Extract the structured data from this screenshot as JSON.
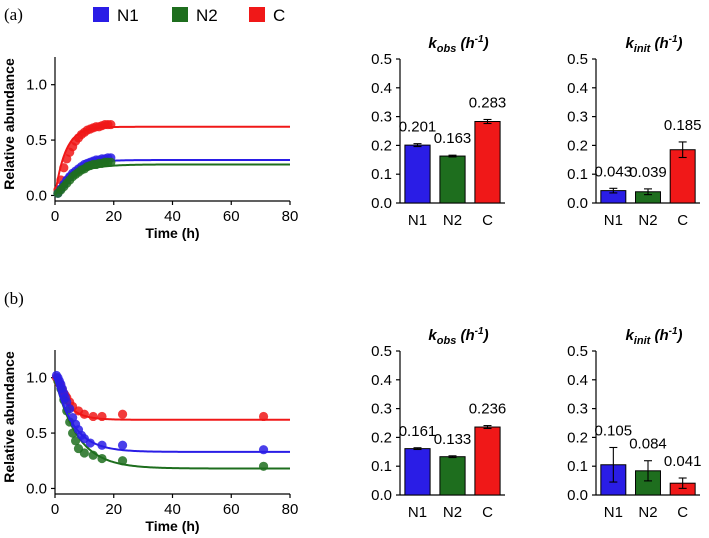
{
  "legend": [
    {
      "name": "N1",
      "color": "#2a1de6"
    },
    {
      "name": "N2",
      "color": "#1e6e1e"
    },
    {
      "name": "C",
      "color": "#f01818"
    }
  ],
  "chart_data": [
    {
      "panel": "(a)",
      "type": "scatter",
      "xlabel": "Time (h)",
      "ylabel": "Relative abundance",
      "xlim": [
        0,
        80
      ],
      "ylim": [
        -0.05,
        1.25
      ],
      "xticks": [
        "0",
        "20",
        "40",
        "60",
        "80"
      ],
      "yticks": [
        "0.0",
        "0.5",
        "1.0"
      ],
      "series": [
        {
          "name": "C",
          "model": "rise",
          "plateau": 0.62,
          "k": 0.283,
          "points": [
            [
              1,
              0.05
            ],
            [
              2,
              0.14
            ],
            [
              3,
              0.25
            ],
            [
              4,
              0.33
            ],
            [
              5,
              0.39
            ],
            [
              6,
              0.44
            ],
            [
              7,
              0.49
            ],
            [
              8,
              0.52
            ],
            [
              9,
              0.55
            ],
            [
              10,
              0.57
            ],
            [
              11,
              0.59
            ],
            [
              12,
              0.6
            ],
            [
              13,
              0.61
            ],
            [
              14,
              0.62
            ],
            [
              15,
              0.62
            ],
            [
              16,
              0.63
            ],
            [
              17,
              0.64
            ],
            [
              18,
              0.64
            ],
            [
              19,
              0.64
            ]
          ]
        },
        {
          "name": "N1",
          "model": "rise",
          "plateau": 0.32,
          "k": 0.201,
          "points": [
            [
              1,
              0.02
            ],
            [
              2,
              0.06
            ],
            [
              3,
              0.1
            ],
            [
              4,
              0.14
            ],
            [
              5,
              0.17
            ],
            [
              6,
              0.2
            ],
            [
              7,
              0.22
            ],
            [
              8,
              0.24
            ],
            [
              9,
              0.26
            ],
            [
              10,
              0.28
            ],
            [
              11,
              0.29
            ],
            [
              12,
              0.3
            ],
            [
              13,
              0.31
            ],
            [
              14,
              0.32
            ],
            [
              15,
              0.32
            ],
            [
              16,
              0.33
            ],
            [
              17,
              0.33
            ],
            [
              18,
              0.34
            ],
            [
              19,
              0.34
            ]
          ]
        },
        {
          "name": "N2",
          "model": "rise",
          "plateau": 0.28,
          "k": 0.163,
          "points": [
            [
              1,
              0.02
            ],
            [
              2,
              0.05
            ],
            [
              3,
              0.08
            ],
            [
              4,
              0.11
            ],
            [
              5,
              0.14
            ],
            [
              6,
              0.17
            ],
            [
              7,
              0.19
            ],
            [
              8,
              0.21
            ],
            [
              9,
              0.23
            ],
            [
              10,
              0.24
            ],
            [
              11,
              0.26
            ],
            [
              12,
              0.27
            ],
            [
              13,
              0.28
            ],
            [
              14,
              0.28
            ],
            [
              15,
              0.29
            ],
            [
              16,
              0.29
            ],
            [
              17,
              0.3
            ],
            [
              18,
              0.3
            ],
            [
              19,
              0.3
            ]
          ]
        }
      ]
    },
    {
      "panel": "(a)",
      "type": "bar",
      "title_main": "k",
      "title_sub": "obs",
      "title_unit": " (h",
      "title_exp": "-1",
      "title_close": ")",
      "ylim": [
        0,
        0.5
      ],
      "yticks": [
        "0.0",
        "0.1",
        "0.2",
        "0.3",
        "0.4",
        "0.5"
      ],
      "categories": [
        "N1",
        "N2",
        "C"
      ],
      "values": [
        0.201,
        0.163,
        0.283
      ],
      "errors": [
        0.005,
        0.003,
        0.007
      ],
      "labels": [
        "0.201",
        "0.163",
        "0.283"
      ]
    },
    {
      "panel": "(a)",
      "type": "bar",
      "title_main": "k",
      "title_sub": "init",
      "title_unit": " (h",
      "title_exp": "-1",
      "title_close": ")",
      "ylim": [
        0,
        0.5
      ],
      "yticks": [
        "0.0",
        "0.1",
        "0.2",
        "0.3",
        "0.4",
        "0.5"
      ],
      "categories": [
        "N1",
        "N2",
        "C"
      ],
      "values": [
        0.043,
        0.039,
        0.185
      ],
      "errors": [
        0.008,
        0.01,
        0.027
      ],
      "labels": [
        "0.043",
        "0.039",
        "0.185"
      ]
    },
    {
      "panel": "(b)",
      "type": "scatter",
      "xlabel": "Time (h)",
      "ylabel": "Relative abundance",
      "xlim": [
        0,
        80
      ],
      "ylim": [
        -0.05,
        1.25
      ],
      "xticks": [
        "0",
        "20",
        "40",
        "60",
        "80"
      ],
      "yticks": [
        "0.0",
        "0.5",
        "1.0"
      ],
      "series": [
        {
          "name": "C",
          "model": "decay",
          "plateau": 0.62,
          "k": 0.236,
          "points": [
            [
              0.5,
              1.0
            ],
            [
              1,
              0.97
            ],
            [
              1.5,
              0.95
            ],
            [
              2,
              0.92
            ],
            [
              2.5,
              0.89
            ],
            [
              3,
              0.86
            ],
            [
              3.5,
              0.84
            ],
            [
              4,
              0.82
            ],
            [
              5,
              0.78
            ],
            [
              6,
              0.74
            ],
            [
              8,
              0.7
            ],
            [
              10,
              0.67
            ],
            [
              13,
              0.65
            ],
            [
              16,
              0.65
            ],
            [
              23,
              0.67
            ],
            [
              71,
              0.65
            ]
          ]
        },
        {
          "name": "N2",
          "model": "decay",
          "plateau": 0.18,
          "k": 0.133,
          "points": [
            [
              1,
              0.97
            ],
            [
              2,
              0.9
            ],
            [
              3,
              0.8
            ],
            [
              4,
              0.7
            ],
            [
              5,
              0.6
            ],
            [
              6,
              0.5
            ],
            [
              7,
              0.43
            ],
            [
              8,
              0.36
            ],
            [
              10,
              0.32
            ],
            [
              13,
              0.3
            ],
            [
              16,
              0.27
            ],
            [
              23,
              0.25
            ],
            [
              71,
              0.2
            ]
          ]
        },
        {
          "name": "N1",
          "model": "decay",
          "plateau": 0.33,
          "k": 0.161,
          "points": [
            [
              0.5,
              1.02
            ],
            [
              1,
              1.0
            ],
            [
              1.5,
              0.97
            ],
            [
              2,
              0.94
            ],
            [
              2.5,
              0.9
            ],
            [
              3,
              0.86
            ],
            [
              3.5,
              0.82
            ],
            [
              4,
              0.78
            ],
            [
              5,
              0.72
            ],
            [
              6,
              0.64
            ],
            [
              7,
              0.58
            ],
            [
              8,
              0.53
            ],
            [
              9,
              0.48
            ],
            [
              10,
              0.45
            ],
            [
              12,
              0.41
            ],
            [
              16,
              0.39
            ],
            [
              23,
              0.39
            ],
            [
              71,
              0.35
            ]
          ]
        }
      ]
    },
    {
      "panel": "(b)",
      "type": "bar",
      "title_main": "k",
      "title_sub": "obs",
      "title_unit": " (h",
      "title_exp": "-1",
      "title_close": ")",
      "ylim": [
        0,
        0.5
      ],
      "yticks": [
        "0.0",
        "0.1",
        "0.2",
        "0.3",
        "0.4",
        "0.5"
      ],
      "categories": [
        "N1",
        "N2",
        "C"
      ],
      "values": [
        0.161,
        0.133,
        0.236
      ],
      "errors": [
        0.003,
        0.003,
        0.005
      ],
      "labels": [
        "0.161",
        "0.133",
        "0.236"
      ]
    },
    {
      "panel": "(b)",
      "type": "bar",
      "title_main": "k",
      "title_sub": "init",
      "title_unit": " (h",
      "title_exp": "-1",
      "title_close": ")",
      "ylim": [
        0,
        0.5
      ],
      "yticks": [
        "0.0",
        "0.1",
        "0.2",
        "0.3",
        "0.4",
        "0.5"
      ],
      "categories": [
        "N1",
        "N2",
        "C"
      ],
      "values": [
        0.105,
        0.084,
        0.041
      ],
      "errors": [
        0.06,
        0.035,
        0.018
      ],
      "labels": [
        "0.105",
        "0.084",
        "0.041"
      ]
    }
  ]
}
